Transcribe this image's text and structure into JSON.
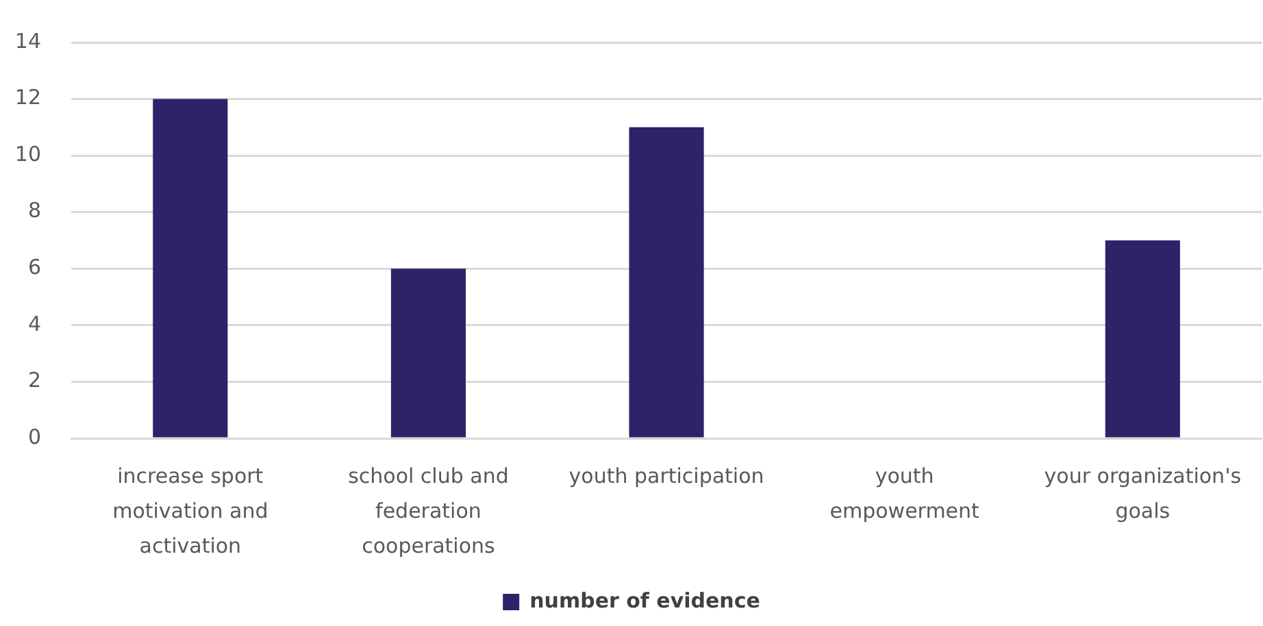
{
  "chart_data": {
    "type": "bar",
    "categories": [
      "increase sport motivation and activation",
      "school club and federation cooperations",
      "youth participation",
      "youth empowerment",
      "your organization's goals"
    ],
    "series": [
      {
        "name": "number of evidence",
        "color": "#2d2369",
        "values": [
          12,
          6,
          11,
          0,
          7
        ]
      }
    ],
    "ylim": [
      0,
      14
    ],
    "yticks": [
      0,
      2,
      4,
      6,
      8,
      10,
      12,
      14
    ],
    "grid": "y",
    "legend": "bottom"
  }
}
